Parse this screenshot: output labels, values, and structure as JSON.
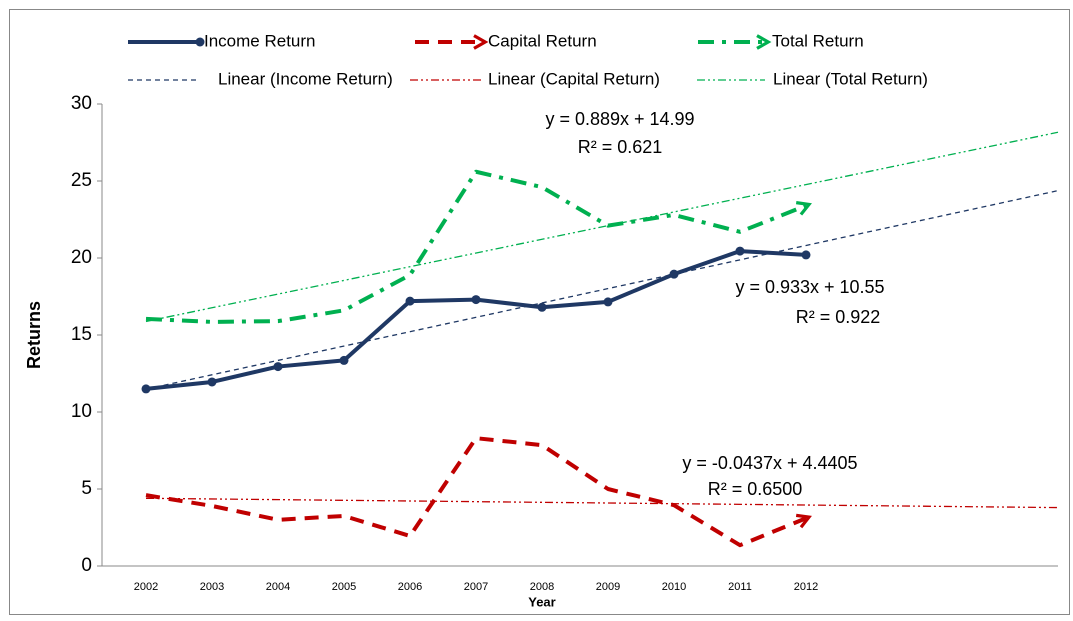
{
  "chart_data": {
    "type": "line",
    "x_label": "Year",
    "y_label": "Returns",
    "categories": [
      "2002",
      "2003",
      "2004",
      "2005",
      "2006",
      "2007",
      "2008",
      "2009",
      "2010",
      "2011",
      "2012"
    ],
    "series": [
      {
        "name": "Income Return",
        "color": "#1f3864",
        "style": "solid",
        "marker": "circle",
        "values": [
          11.5,
          11.95,
          12.95,
          13.35,
          17.2,
          17.3,
          16.8,
          17.15,
          18.95,
          20.45,
          20.2
        ]
      },
      {
        "name": "Capital Return",
        "color": "#c00000",
        "style": "dash",
        "marker": "arrow",
        "values": [
          4.6,
          3.9,
          3.0,
          3.25,
          1.95,
          8.3,
          7.85,
          5.0,
          3.95,
          1.35,
          3.1
        ]
      },
      {
        "name": "Total Return",
        "color": "#00b050",
        "style": "dashdot",
        "marker": "arrow",
        "values": [
          16.05,
          15.85,
          15.9,
          16.6,
          18.9,
          25.6,
          24.6,
          22.1,
          22.8,
          21.7,
          23.4
        ]
      }
    ],
    "trendlines": [
      {
        "name": "Linear (Income Return)",
        "color": "#1f3864",
        "style": "dash",
        "slope": 0.933,
        "intercept": 10.55,
        "equation": "y = 0.933x + 10.55",
        "r2": {
          "value": 0.922,
          "label": "R² = 0.922"
        }
      },
      {
        "name": "Linear (Capital Return)",
        "color": "#c00000",
        "style": "dashdotdot",
        "slope": -0.0437,
        "intercept": 4.4405,
        "equation": "y = -0.0437x + 4.4405",
        "r2": {
          "value": 0.65,
          "label": "R² = 0.6500"
        }
      },
      {
        "name": "Linear (Total Return)",
        "color": "#00b050",
        "style": "dashdotdot",
        "slope": 0.889,
        "intercept": 14.99,
        "equation": "y = 0.889x + 14.99",
        "r2": {
          "value": 0.621,
          "label": "R² = 0.621"
        }
      }
    ],
    "ylim": [
      0,
      30
    ],
    "yticks": [
      0,
      5,
      10,
      15,
      20,
      25,
      30
    ],
    "grid": false,
    "legend": "top"
  }
}
